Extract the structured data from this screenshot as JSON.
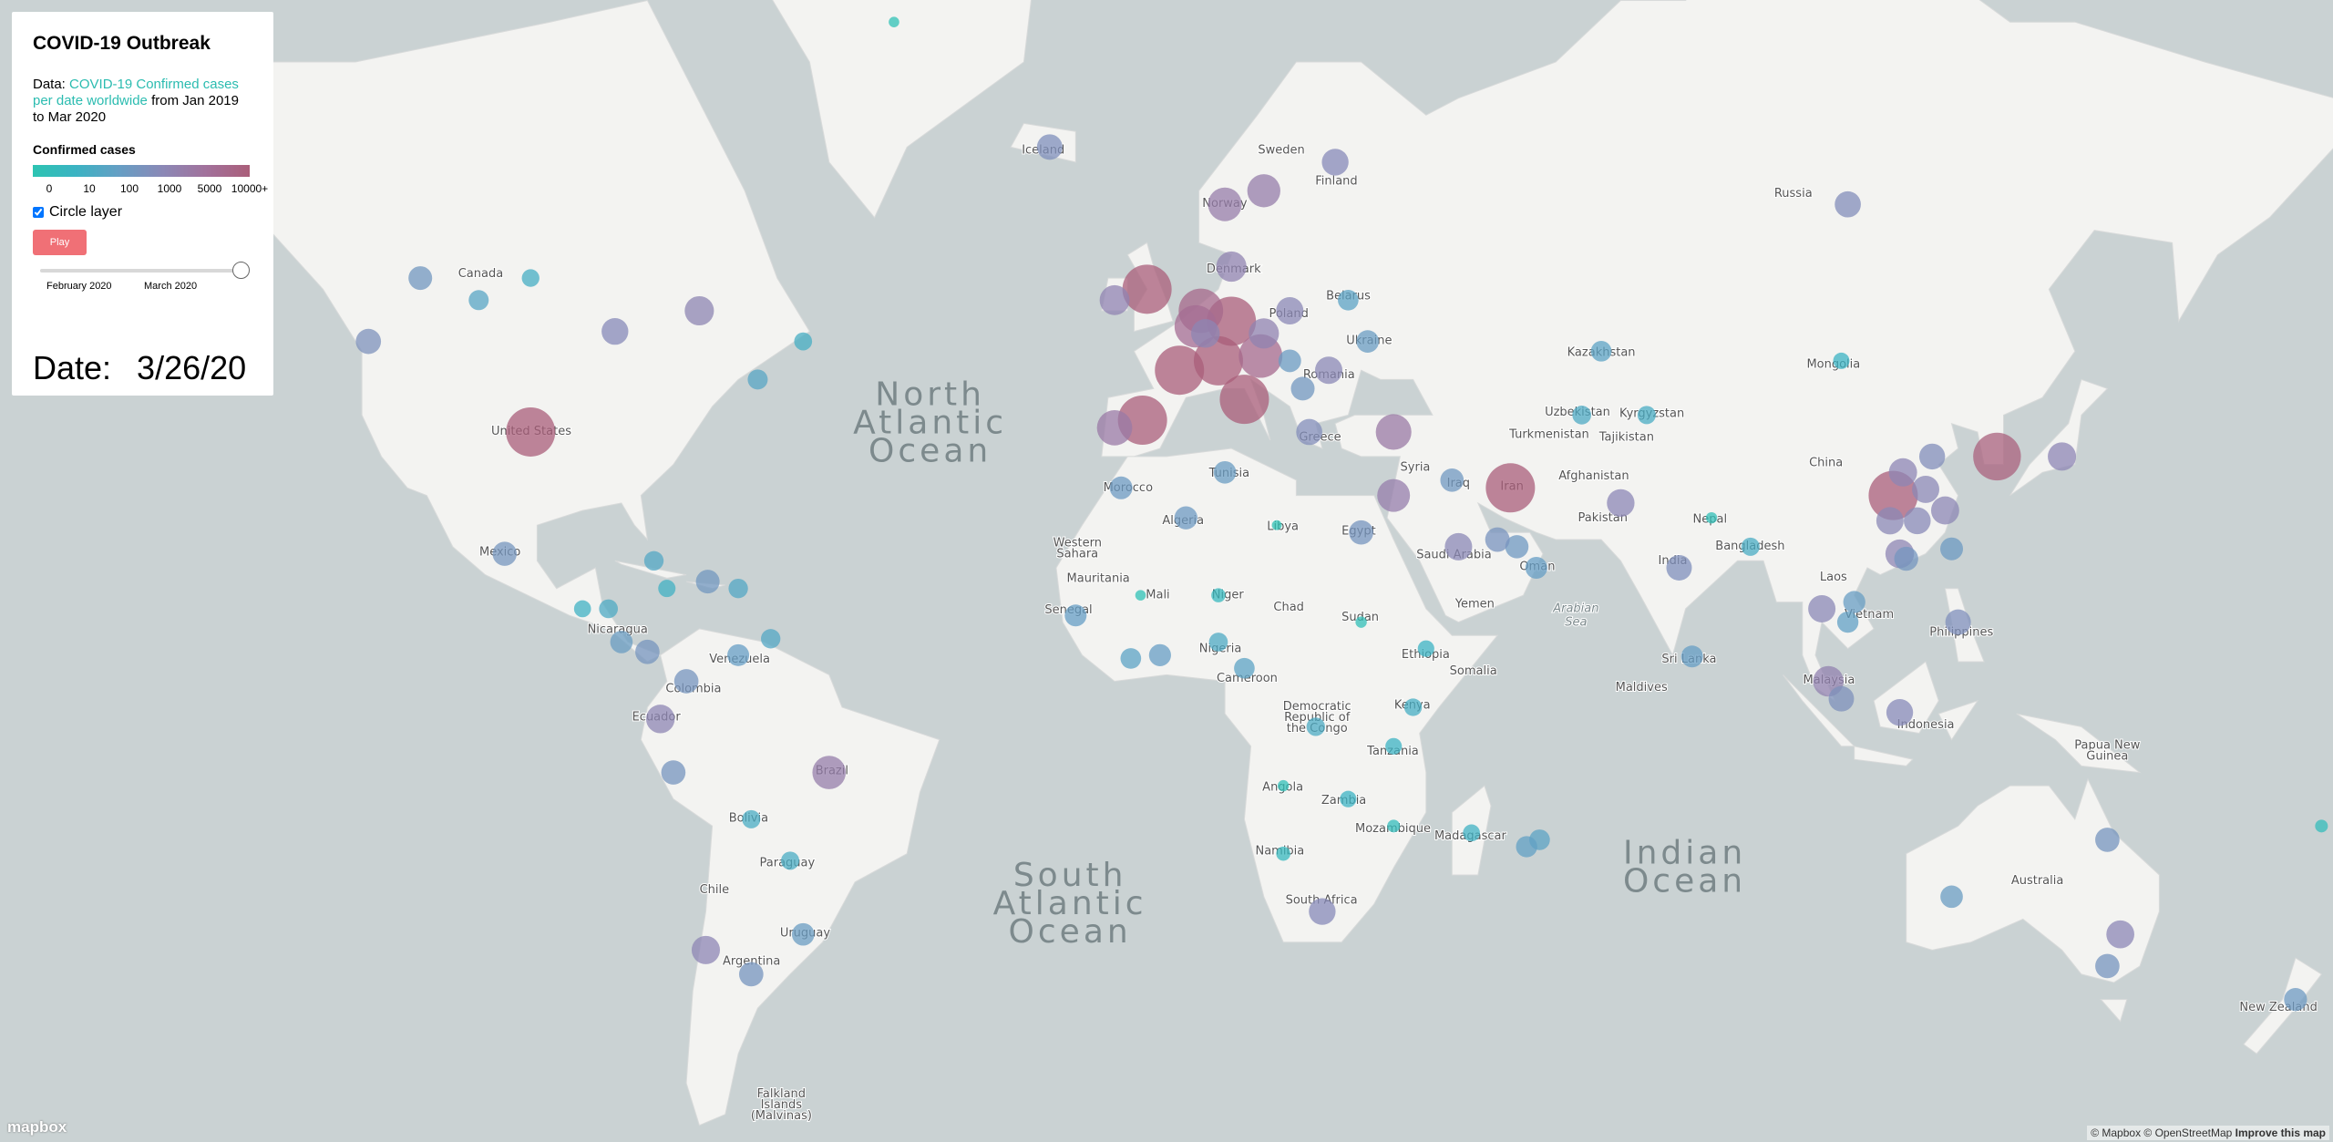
{
  "panel": {
    "title": "COVID-19 Outbreak",
    "data_prefix": "Data:",
    "link_text": "COVID-19 Confirmed cases per date worldwide",
    "data_suffix": "from Jan 2019 to Mar 2020",
    "legend_title": "Confirmed cases",
    "legend": {
      "stops": [
        0,
        10,
        100,
        1000,
        5000,
        {
          "value": 10000,
          "label": "10000+"
        }
      ],
      "colors": [
        "#2DC4B2",
        "#3BB3C3",
        "#669EC4",
        "#8B88B6",
        "#A2719B",
        "#AA5E79"
      ]
    },
    "checkbox_label": "Circle layer",
    "checkbox_checked": true,
    "play_label": "Play",
    "slider_labels": [
      "February 2020",
      "March 2020"
    ],
    "date_label": "Date:",
    "date_value": "3/26/20"
  },
  "map": {
    "labels": [
      [
        "Canada"
      ],
      [
        "United States"
      ],
      [
        "Mexico"
      ],
      [
        "Nicaragua"
      ],
      [
        "Venezuela"
      ],
      [
        "Colombia"
      ],
      [
        "Ecuador"
      ],
      [
        "Brazil"
      ],
      [
        "Bolivia"
      ],
      [
        "Paraguay"
      ],
      [
        "Chile"
      ],
      [
        "Argentina"
      ],
      [
        "Uruguay"
      ],
      [
        "Falkland",
        "Islands",
        "(Malvinas)"
      ],
      [
        "Iceland"
      ],
      [
        "Sweden"
      ],
      [
        "Finland"
      ],
      [
        "Norway"
      ],
      [
        "Russia"
      ],
      [
        "Denmark"
      ],
      [
        "Poland"
      ],
      [
        "Belarus"
      ],
      [
        "Ukraine"
      ],
      [
        "Romania"
      ],
      [
        "Greece"
      ],
      [
        "Morocco"
      ],
      [
        "Tunisia"
      ],
      [
        "Algeria"
      ],
      [
        "Libya"
      ],
      [
        "Egypt"
      ],
      [
        "Western",
        "Sahara"
      ],
      [
        "Mauritania"
      ],
      [
        "Mali"
      ],
      [
        "Niger"
      ],
      [
        "Chad"
      ],
      [
        "Sudan"
      ],
      [
        "Senegal"
      ],
      [
        "Nigeria"
      ],
      [
        "Cameroon"
      ],
      [
        "Democratic",
        "Republic of",
        "the Congo"
      ],
      [
        "Ethiopia"
      ],
      [
        "Somalia"
      ],
      [
        "Kenya"
      ],
      [
        "Tanzania"
      ],
      [
        "Angola"
      ],
      [
        "Zambia"
      ],
      [
        "Mozambique"
      ],
      [
        "Namibia"
      ],
      [
        "Madagascar"
      ],
      [
        "South Africa"
      ],
      [
        "Syria"
      ],
      [
        "Iraq"
      ],
      [
        "Iran"
      ],
      [
        "Saudi Arabia"
      ],
      [
        "Yemen"
      ],
      [
        "Oman"
      ],
      [
        "Kazakhstan"
      ],
      [
        "Uzbekistan"
      ],
      [
        "Turkmenistan"
      ],
      [
        "Kyrgyzstan"
      ],
      [
        "Tajikistan"
      ],
      [
        "Afghanistan"
      ],
      [
        "Pakistan"
      ],
      [
        "India"
      ],
      [
        "Nepal"
      ],
      [
        "Bangladesh"
      ],
      [
        "Sri Lanka"
      ],
      [
        "Maldives"
      ],
      [
        "Mongolia"
      ],
      [
        "China"
      ],
      [
        "Laos"
      ],
      [
        "Vietnam"
      ],
      [
        "Philippines"
      ],
      [
        "Malaysia"
      ],
      [
        "Indonesia"
      ],
      [
        "Papua New",
        "Guinea"
      ],
      [
        "Australia"
      ],
      [
        "New Zealand"
      ],
      [
        "Arabian",
        "Sea"
      ],
      [
        "North",
        "Atlantic",
        "Ocean"
      ],
      [
        "South",
        "Atlantic",
        "Ocean"
      ],
      [
        "Indian",
        "Ocean"
      ]
    ],
    "logo": "mapbox",
    "attribution": "© Mapbox © OpenStreetMap",
    "improve": "Improve this map"
  },
  "points": [
    {
      "lon": -98,
      "lat": 39,
      "cases": 69000
    },
    {
      "lon": 12,
      "lat": 42.8,
      "cases": 80500
    },
    {
      "lon": -3.7,
      "lat": 40.4,
      "cases": 57700
    },
    {
      "lon": 112,
      "lat": 31,
      "cases": 67800
    },
    {
      "lon": 10,
      "lat": 51,
      "cases": 43900
    },
    {
      "lon": 53,
      "lat": 32,
      "cases": 29400
    },
    {
      "lon": 2,
      "lat": 46,
      "cases": 29500
    },
    {
      "lon": -3,
      "lat": 54,
      "cases": 11800
    },
    {
      "lon": 8,
      "lat": 47,
      "cases": 11800
    },
    {
      "lon": 128,
      "lat": 36,
      "cases": 9200
    },
    {
      "lon": 5.3,
      "lat": 52,
      "cases": 7400
    },
    {
      "lon": 14.5,
      "lat": 47.5,
      "cases": 6900
    },
    {
      "lon": 4.5,
      "lat": 50.5,
      "cases": 6200
    },
    {
      "lon": 35,
      "lat": 39,
      "cases": 3600
    },
    {
      "lon": -8,
      "lat": 39.5,
      "cases": 3500
    },
    {
      "lon": 9,
      "lat": 61,
      "cases": 3000
    },
    {
      "lon": -52,
      "lat": -10,
      "cases": 2900
    },
    {
      "lon": 147,
      "lat": -33,
      "cases": 1200
    },
    {
      "lon": 15,
      "lat": 62,
      "cases": 2800
    },
    {
      "lon": 35,
      "lat": 31,
      "cases": 2700
    },
    {
      "lon": 15,
      "lat": 49.8,
      "cases": 1900
    },
    {
      "lon": 10,
      "lat": 56,
      "cases": 1900
    },
    {
      "lon": 102,
      "lat": 4,
      "cases": 2000
    },
    {
      "lon": -8,
      "lat": 53,
      "cases": 1800
    },
    {
      "lon": -85,
      "lat": 50,
      "cases": 900
    },
    {
      "lon": -72,
      "lat": 52,
      "cases": 1600
    },
    {
      "lon": -71,
      "lat": -35,
      "cases": 1300
    },
    {
      "lon": -78,
      "lat": -1.8,
      "cases": 1400
    },
    {
      "lon": 138,
      "lat": 36,
      "cases": 1300
    },
    {
      "lon": 19,
      "lat": 52,
      "cases": 1000
    },
    {
      "lon": 25,
      "lat": 46,
      "cases": 1000
    },
    {
      "lon": 70,
      "lat": 30,
      "cases": 1100
    },
    {
      "lon": 105,
      "lat": 61,
      "cases": 800
    },
    {
      "lon": 101,
      "lat": 15,
      "cases": 1000
    },
    {
      "lon": 45,
      "lat": 24,
      "cases": 1000
    },
    {
      "lon": 113,
      "lat": -0.8,
      "cases": 900
    },
    {
      "lon": 26,
      "lat": 64,
      "cases": 900
    },
    {
      "lon": 22,
      "lat": 39,
      "cases": 800
    },
    {
      "lon": 79,
      "lat": 21,
      "cases": 700
    },
    {
      "lon": 122,
      "lat": 13,
      "cases": 700
    },
    {
      "lon": 24,
      "lat": -30,
      "cases": 900
    },
    {
      "lon": -76,
      "lat": -10,
      "cases": 500
    },
    {
      "lon": -102,
      "lat": 23,
      "cases": 475
    },
    {
      "lon": -80,
      "lat": 8.5,
      "cases": 500
    },
    {
      "lon": -74,
      "lat": 4,
      "cases": 500
    },
    {
      "lon": -64,
      "lat": -38,
      "cases": 500
    },
    {
      "lon": 30,
      "lat": 26,
      "cases": 500
    },
    {
      "lon": -18,
      "lat": 65,
      "cases": 700
    },
    {
      "lon": 6,
      "lat": 49.8,
      "cases": 1400
    },
    {
      "lon": 3,
      "lat": 28,
      "cases": 300
    },
    {
      "lon": -7,
      "lat": 32,
      "cases": 250
    },
    {
      "lon": 104,
      "lat": 1.3,
      "cases": 680
    },
    {
      "lon": -123,
      "lat": 49,
      "cases": 650
    },
    {
      "lon": -115,
      "lat": 55,
      "cases": 400
    },
    {
      "lon": 113,
      "lat": 23,
      "cases": 1400
    },
    {
      "lon": 113.5,
      "lat": 34,
      "cases": 1270
    },
    {
      "lon": 120,
      "lat": 29,
      "cases": 1240
    },
    {
      "lon": 111.5,
      "lat": 27.6,
      "cases": 1000
    },
    {
      "lon": 117,
      "lat": 31.8,
      "cases": 990
    },
    {
      "lon": 115.7,
      "lat": 27.6,
      "cases": 930
    },
    {
      "lon": 118,
      "lat": 36,
      "cases": 760
    },
    {
      "lon": 114,
      "lat": 22.3,
      "cases": 450
    },
    {
      "lon": 121,
      "lat": 23.7,
      "cases": 250
    },
    {
      "lon": -70.7,
      "lat": 19,
      "cases": 400
    },
    {
      "lon": -66,
      "lat": 8,
      "cases": 100
    },
    {
      "lon": -79,
      "lat": 22,
      "cases": 60
    },
    {
      "lon": 67,
      "lat": 48,
      "cases": 80
    },
    {
      "lon": 104,
      "lat": 47,
      "cases": 10
    },
    {
      "lon": -14,
      "lat": 14,
      "cases": 100
    },
    {
      "lon": 8,
      "lat": 10,
      "cases": 50
    },
    {
      "lon": 38,
      "lat": 0,
      "cases": 30
    },
    {
      "lon": 12,
      "lat": 6,
      "cases": 80
    },
    {
      "lon": 47,
      "lat": -19,
      "cases": 20
    },
    {
      "lon": 44,
      "lat": 33,
      "cases": 350
    },
    {
      "lon": 54,
      "lat": 24,
      "cases": 330
    },
    {
      "lon": 51,
      "lat": 25,
      "cases": 530
    },
    {
      "lon": 57,
      "lat": 21,
      "cases": 100
    },
    {
      "lon": 81,
      "lat": 7.8,
      "cases": 100
    },
    {
      "lon": 9,
      "lat": 34,
      "cases": 200
    },
    {
      "lon": -56,
      "lat": -33,
      "cases": 200
    },
    {
      "lon": -64,
      "lat": -17,
      "cases": 40
    },
    {
      "lon": -58,
      "lat": -23,
      "cases": 40
    },
    {
      "lon": 174,
      "lat": -41,
      "cases": 280
    },
    {
      "lon": 121,
      "lat": -28,
      "cases": 200
    },
    {
      "lon": 145,
      "lat": -37,
      "cases": 500
    },
    {
      "lon": 145,
      "lat": -20,
      "cases": 500
    },
    {
      "lon": 31,
      "lat": 49,
      "cases": 200
    },
    {
      "lon": 28,
      "lat": 53,
      "cases": 80
    },
    {
      "lon": 21,
      "lat": 44,
      "cases": 400
    },
    {
      "lon": 19,
      "lat": 47,
      "cases": 230
    },
    {
      "lon": 64,
      "lat": 41,
      "cases": 50
    },
    {
      "lon": 74,
      "lat": 41,
      "cases": 40
    },
    {
      "lon": 84,
      "lat": 28,
      "cases": 3
    },
    {
      "lon": 90,
      "lat": 24,
      "cases": 40
    },
    {
      "lon": 106,
      "lat": 16,
      "cases": 140
    },
    {
      "lon": 105,
      "lat": 13,
      "cases": 90
    },
    {
      "lon": -90,
      "lat": 15,
      "cases": 20
    },
    {
      "lon": -86,
      "lat": 15,
      "cases": 50
    },
    {
      "lon": -84,
      "lat": 10,
      "cases": 200
    },
    {
      "lon": -77,
      "lat": 18,
      "cases": 25
    },
    {
      "lon": -66,
      "lat": 18,
      "cases": 60
    },
    {
      "lon": -61,
      "lat": 10.5,
      "cases": 60
    },
    {
      "lon": -1,
      "lat": 8,
      "cases": 130
    },
    {
      "lon": -5.5,
      "lat": 7.5,
      "cases": 80
    },
    {
      "lon": 40,
      "lat": 9,
      "cases": 12
    },
    {
      "lon": 30,
      "lat": 13,
      "cases": 3
    },
    {
      "lon": 35,
      "lat": -6,
      "cases": 12
    },
    {
      "lon": 28,
      "lat": -14,
      "cases": 12
    },
    {
      "lon": 18,
      "lat": -22,
      "cases": 7
    },
    {
      "lon": 35,
      "lat": -18,
      "cases": 5
    },
    {
      "lon": 18,
      "lat": -12,
      "cases": 3
    },
    {
      "lon": 23,
      "lat": -3,
      "cases": 45
    },
    {
      "lon": 17,
      "lat": 27,
      "cases": 1
    },
    {
      "lon": 8,
      "lat": 17,
      "cases": 7
    },
    {
      "lon": -4,
      "lat": 17,
      "cases": 2
    },
    {
      "lon": 57.5,
      "lat": -20,
      "cases": 80
    },
    {
      "lon": 55.5,
      "lat": -21,
      "cases": 90
    },
    {
      "lon": 178,
      "lat": -18,
      "cases": 5
    },
    {
      "lon": -42,
      "lat": 72,
      "cases": 2
    },
    {
      "lon": -63,
      "lat": 45,
      "cases": 70
    },
    {
      "lon": -56,
      "lat": 49,
      "cases": 35
    },
    {
      "lon": -98,
      "lat": 55,
      "cases": 30
    },
    {
      "lon": -106,
      "lat": 53,
      "cases": 70
    }
  ]
}
